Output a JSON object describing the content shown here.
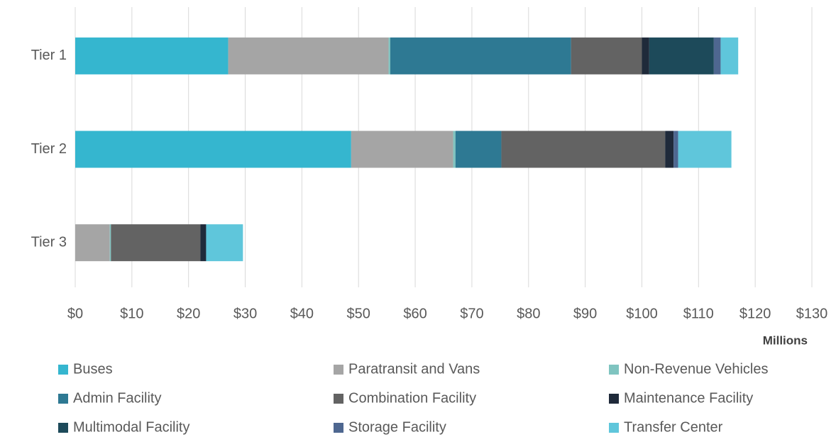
{
  "chart_data": {
    "type": "stacked_barh",
    "categories": [
      "Tier 1",
      "Tier 2",
      "Tier 3"
    ],
    "x_axis_label": "Millions",
    "series": [
      {
        "name": "Buses",
        "color": "#35b6cf",
        "values": [
          27,
          48.7,
          0
        ]
      },
      {
        "name": "Paratransit and Vans",
        "color": "#a5a5a5",
        "values": [
          28.3,
          18,
          6.1
        ]
      },
      {
        "name": "Non-Revenue Vehicles",
        "color": "#7fc4c0",
        "values": [
          0.3,
          0.4,
          0.2
        ]
      },
      {
        "name": "Admin Facility",
        "color": "#2e7993",
        "values": [
          31.9,
          8.1,
          0
        ]
      },
      {
        "name": "Combination Facility",
        "color": "#636363",
        "values": [
          12.5,
          28.9,
          15.8
        ]
      },
      {
        "name": "Maintenance Facility",
        "color": "#1f2a3a",
        "values": [
          1.3,
          1.5,
          1
        ]
      },
      {
        "name": "Multimodal Facility",
        "color": "#1d4a5a",
        "values": [
          11.4,
          0,
          0
        ]
      },
      {
        "name": "Storage Facility",
        "color": "#4e6790",
        "values": [
          1.2,
          0.8,
          0
        ]
      },
      {
        "name": "Transfer Center",
        "color": "#5fc6db",
        "values": [
          3.1,
          9.4,
          6.5
        ]
      }
    ],
    "xlim": [
      0,
      130
    ],
    "xticks": [
      {
        "value": 0,
        "label": "$0"
      },
      {
        "value": 10,
        "label": "$10"
      },
      {
        "value": 20,
        "label": "$20"
      },
      {
        "value": 30,
        "label": "$30"
      },
      {
        "value": 40,
        "label": "$40"
      },
      {
        "value": 50,
        "label": "$50"
      },
      {
        "value": 60,
        "label": "$60"
      },
      {
        "value": 70,
        "label": "$70"
      },
      {
        "value": 80,
        "label": "$80"
      },
      {
        "value": 90,
        "label": "$90"
      },
      {
        "value": 100,
        "label": "$100"
      },
      {
        "value": 110,
        "label": "$110"
      },
      {
        "value": 120,
        "label": "$120"
      },
      {
        "value": 130,
        "label": "$130"
      }
    ],
    "grid": true,
    "legend": "bottom"
  }
}
